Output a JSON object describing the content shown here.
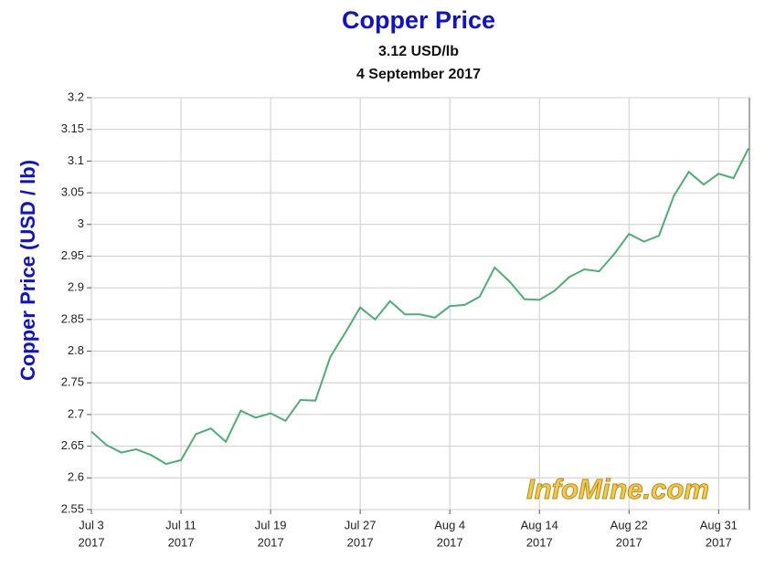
{
  "chart_data": {
    "type": "line",
    "title": "Copper Price",
    "subtitle": "3.12 USD/lb",
    "date": "4 September 2017",
    "ylabel": "Copper  Price (USD / lb)",
    "watermark": "InfoMine.com",
    "categories": [
      "Jul 3",
      null,
      null,
      null,
      null,
      null,
      "Jul 11",
      null,
      null,
      null,
      null,
      null,
      "Jul 19",
      null,
      null,
      null,
      null,
      null,
      "Jul 27",
      null,
      null,
      null,
      null,
      null,
      "Aug 4",
      null,
      null,
      null,
      null,
      null,
      "Aug 14",
      null,
      null,
      null,
      null,
      null,
      "Aug 22",
      null,
      null,
      null,
      null,
      null,
      "Aug 31",
      null,
      null
    ],
    "category_years": [
      "2017",
      null,
      null,
      null,
      null,
      null,
      "2017",
      null,
      null,
      null,
      null,
      null,
      "2017",
      null,
      null,
      null,
      null,
      null,
      "2017",
      null,
      null,
      null,
      null,
      null,
      "2017",
      null,
      null,
      null,
      null,
      null,
      "2017",
      null,
      null,
      null,
      null,
      null,
      "2017",
      null,
      null,
      null,
      null,
      null,
      "2017",
      null,
      null
    ],
    "series": [
      {
        "name": "Copper Price",
        "color": "#4caf75",
        "values": [
          2.673,
          2.652,
          2.64,
          2.645,
          2.636,
          2.622,
          2.628,
          2.669,
          2.678,
          2.657,
          2.706,
          2.695,
          2.702,
          2.69,
          2.723,
          2.722,
          2.791,
          2.829,
          2.869,
          2.85,
          2.879,
          2.858,
          2.858,
          2.853,
          2.871,
          2.873,
          2.886,
          2.932,
          2.91,
          2.882,
          2.881,
          2.895,
          2.917,
          2.929,
          2.926,
          2.953,
          2.985,
          2.973,
          2.982,
          3.045,
          3.083,
          3.063,
          3.08,
          3.073,
          3.12
        ]
      }
    ],
    "ylim": [
      2.55,
      3.2
    ],
    "yticks": [
      2.55,
      2.6,
      2.65,
      2.7,
      2.75,
      2.8,
      2.85,
      2.9,
      2.95,
      3,
      3.05,
      3.1,
      3.15,
      3.2
    ],
    "grid": true
  }
}
